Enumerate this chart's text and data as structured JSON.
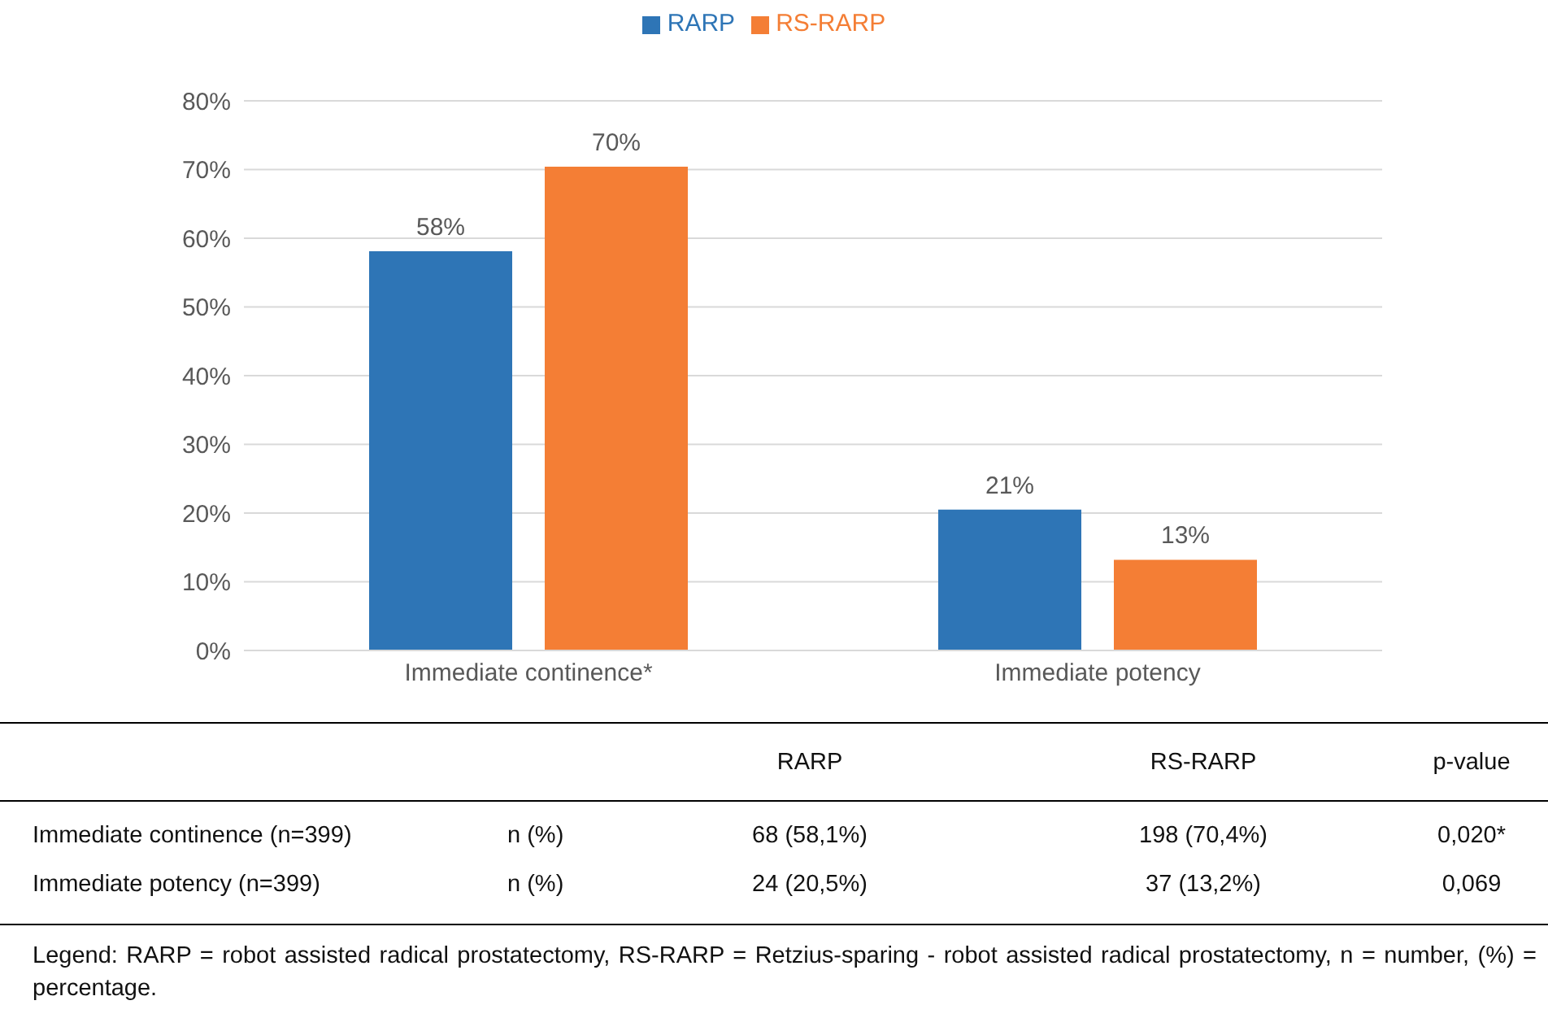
{
  "chart_data": {
    "type": "bar",
    "categories": [
      "Immediate continence*",
      "Immediate potency"
    ],
    "series": [
      {
        "name": "RARP",
        "color": "#2e75b6",
        "values": [
          58.1,
          20.5
        ],
        "value_labels": [
          "58%",
          "21%"
        ]
      },
      {
        "name": "RS-RARP",
        "color": "#f47e35",
        "values": [
          70.4,
          13.2
        ],
        "value_labels": [
          "70%",
          "13%"
        ]
      }
    ],
    "ylim": [
      0,
      80
    ],
    "yticks": [
      {
        "value": 0,
        "label": "0%"
      },
      {
        "value": 10,
        "label": "10%"
      },
      {
        "value": 20,
        "label": "20%"
      },
      {
        "value": 30,
        "label": "30%"
      },
      {
        "value": 40,
        "label": "40%"
      },
      {
        "value": 50,
        "label": "50%"
      },
      {
        "value": 60,
        "label": "60%"
      },
      {
        "value": 70,
        "label": "70%"
      },
      {
        "value": 80,
        "label": "80%"
      }
    ],
    "grid": "y",
    "legend": "top",
    "annotations": [
      "Immediate continence (n=399)",
      "n (%)",
      "68 (58,1%)",
      "198 (70,4%)",
      "0,020*",
      "Immediate potency (n=399)",
      "n (%)",
      "24 (20,5%)",
      "37 (13,2%)",
      "0,069",
      "p-value",
      "Legend: RARP = robot assisted radical prostatectomy, RS-RARP = Retzius-sparing - robot assisted radical prostatectomy, n = number, (%) = percentage."
    ]
  }
}
